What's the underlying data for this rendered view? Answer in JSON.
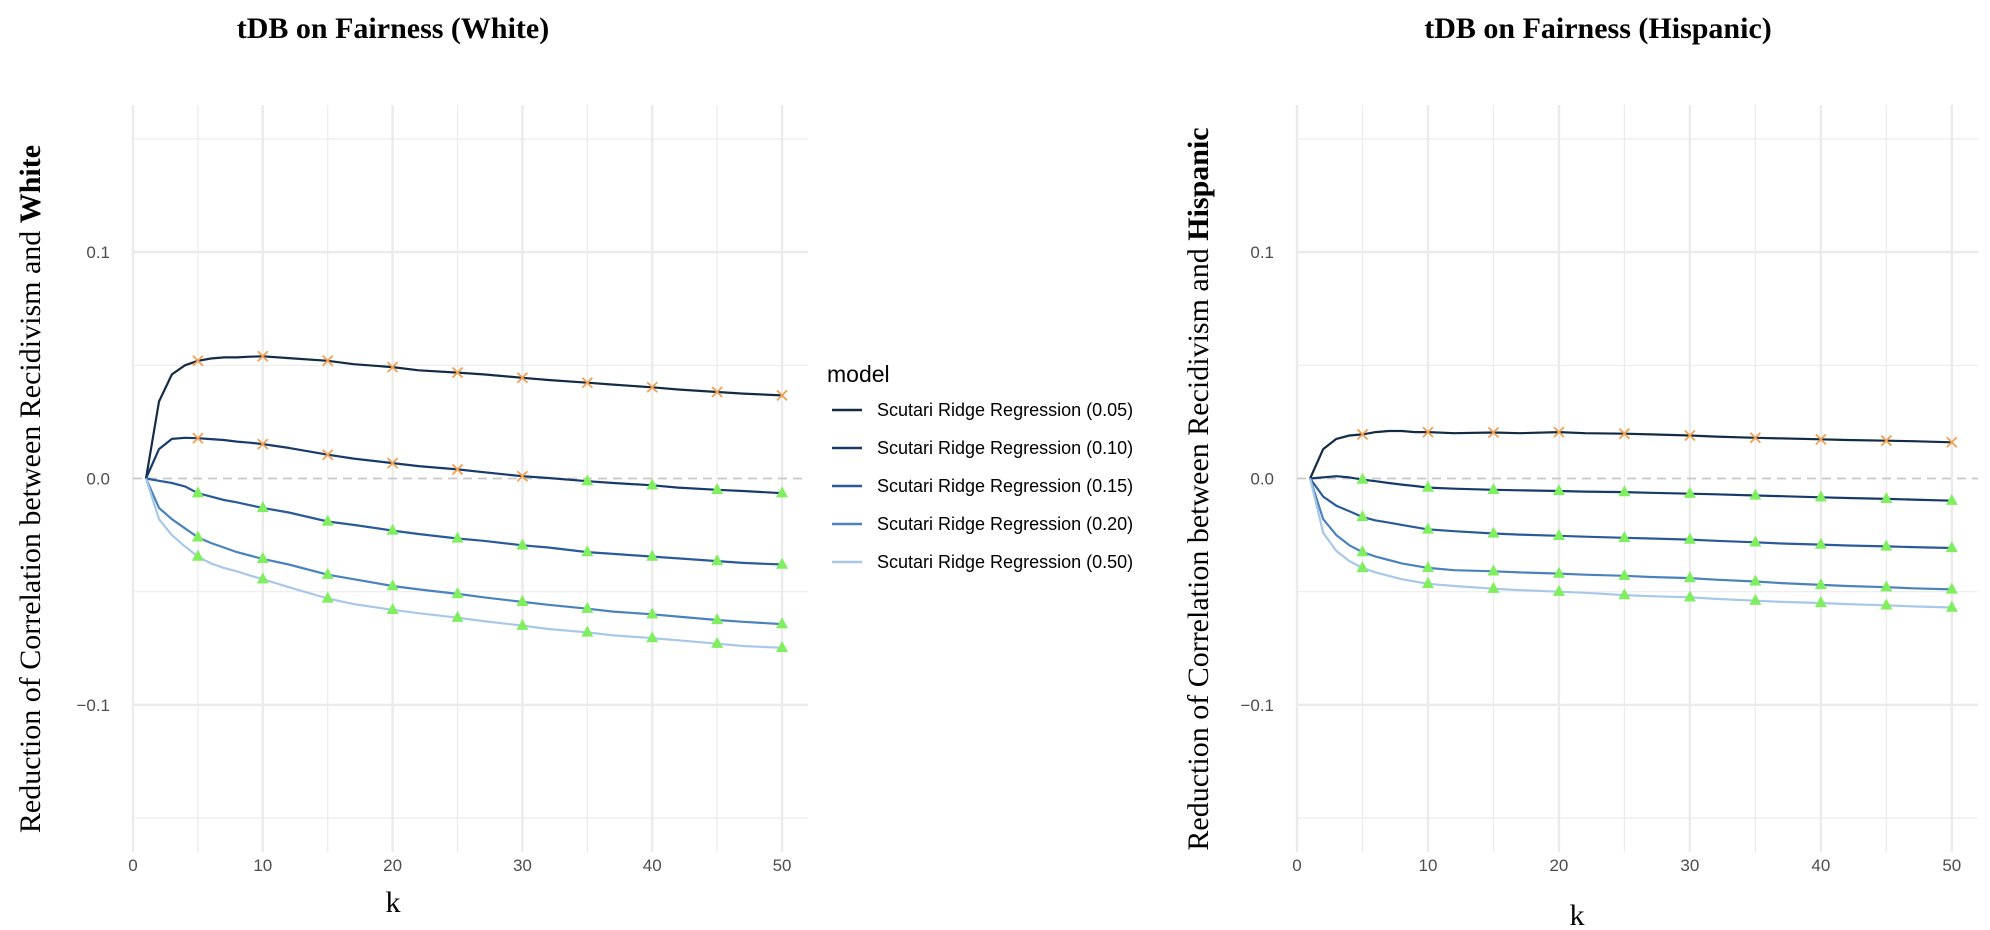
{
  "colors": {
    "series": [
      "#132b43",
      "#173a6a",
      "#2a5a9a",
      "#4a82bd",
      "#a8c8e8"
    ],
    "positive_marker": "#f0a050",
    "negative_marker": "#7fef5f",
    "grid": "#ebebeb",
    "zero_line": "#c8c8c8"
  },
  "legend": {
    "title": "model",
    "items": [
      "Scutari Ridge Regression (0.05)",
      "Scutari Ridge Regression (0.10)",
      "Scutari Ridge Regression (0.15)",
      "Scutari Ridge Regression (0.20)",
      "Scutari Ridge Regression (0.50)"
    ]
  },
  "chart_data": [
    {
      "type": "line",
      "title": "tDB on Fairness (White)",
      "xlabel": "k",
      "ylabel_prefix": "Reduction of Correlation between Recidivism and ",
      "ylabel_bold": "White",
      "xlim": [
        0,
        52
      ],
      "ylim": [
        -0.165,
        0.165
      ],
      "x_ticks": [
        0,
        10,
        20,
        30,
        40,
        50
      ],
      "y_ticks": [
        0.1,
        0.0,
        -0.1
      ],
      "y_tick_labels": [
        "0.1",
        "0.0",
        "−0.1"
      ],
      "marker_x": [
        5,
        10,
        15,
        20,
        25,
        30,
        35,
        40,
        45,
        50
      ],
      "x": [
        1,
        2,
        3,
        4,
        5,
        6,
        7,
        8,
        9,
        10,
        12,
        15,
        17,
        20,
        22,
        25,
        27,
        30,
        32,
        35,
        37,
        40,
        42,
        45,
        47,
        50
      ],
      "series": [
        {
          "name": "Scutari Ridge Regression (0.05)",
          "values": [
            0,
            0.034,
            0.046,
            0.05,
            0.052,
            0.053,
            0.0535,
            0.0535,
            0.0538,
            0.054,
            0.0532,
            0.052,
            0.0505,
            0.0492,
            0.0478,
            0.0468,
            0.046,
            0.0445,
            0.0435,
            0.0423,
            0.0415,
            0.0403,
            0.0393,
            0.0382,
            0.0375,
            0.0367
          ]
        },
        {
          "name": "Scutari Ridge Regression (0.10)",
          "values": [
            0,
            0.013,
            0.0175,
            0.018,
            0.0178,
            0.0174,
            0.017,
            0.0163,
            0.0158,
            0.0152,
            0.0135,
            0.0105,
            0.0088,
            0.0068,
            0.0055,
            0.004,
            0.0028,
            0.001,
            0.0002,
            -0.0012,
            -0.002,
            -0.003,
            -0.004,
            -0.005,
            -0.0055,
            -0.0065
          ]
        },
        {
          "name": "Scutari Ridge Regression (0.15)",
          "values": [
            0,
            -0.001,
            -0.002,
            -0.0035,
            -0.0065,
            -0.008,
            -0.0095,
            -0.0105,
            -0.0118,
            -0.013,
            -0.015,
            -0.019,
            -0.0205,
            -0.023,
            -0.0245,
            -0.0265,
            -0.0275,
            -0.0295,
            -0.0305,
            -0.0325,
            -0.0333,
            -0.0345,
            -0.0353,
            -0.0365,
            -0.0373,
            -0.038
          ]
        },
        {
          "name": "Scutari Ridge Regression (0.20)",
          "values": [
            0,
            -0.013,
            -0.018,
            -0.022,
            -0.026,
            -0.0285,
            -0.0305,
            -0.0325,
            -0.034,
            -0.0355,
            -0.038,
            -0.0425,
            -0.0445,
            -0.0475,
            -0.049,
            -0.051,
            -0.0525,
            -0.0545,
            -0.0558,
            -0.0575,
            -0.0588,
            -0.06,
            -0.061,
            -0.0625,
            -0.0633,
            -0.0643
          ]
        },
        {
          "name": "Scutari Ridge Regression (0.50)",
          "values": [
            0,
            -0.018,
            -0.025,
            -0.03,
            -0.0345,
            -0.0375,
            -0.0395,
            -0.041,
            -0.0428,
            -0.0445,
            -0.048,
            -0.053,
            -0.0555,
            -0.058,
            -0.0595,
            -0.0615,
            -0.063,
            -0.065,
            -0.0665,
            -0.068,
            -0.0693,
            -0.0705,
            -0.0715,
            -0.073,
            -0.074,
            -0.0748
          ]
        }
      ]
    },
    {
      "type": "line",
      "title": "tDB on Fairness (Hispanic)",
      "xlabel": "k",
      "ylabel_prefix": "Reduction of Correlation between Recidivism and ",
      "ylabel_bold": "Hispanic",
      "xlim": [
        0,
        52
      ],
      "ylim": [
        -0.165,
        0.165
      ],
      "x_ticks": [
        0,
        10,
        20,
        30,
        40,
        50
      ],
      "y_ticks": [
        0.1,
        0.0,
        -0.1
      ],
      "y_tick_labels": [
        "0.1",
        "0.0",
        "−0.1"
      ],
      "marker_x": [
        5,
        10,
        15,
        20,
        25,
        30,
        35,
        40,
        45,
        50
      ],
      "x": [
        1,
        2,
        3,
        4,
        5,
        6,
        7,
        8,
        9,
        10,
        12,
        15,
        17,
        20,
        22,
        25,
        27,
        30,
        32,
        35,
        37,
        40,
        42,
        45,
        47,
        50
      ],
      "series": [
        {
          "name": "Scutari Ridge Regression (0.05)",
          "values": [
            0,
            0.013,
            0.0175,
            0.019,
            0.0195,
            0.0205,
            0.021,
            0.021,
            0.0205,
            0.0205,
            0.02,
            0.0203,
            0.02,
            0.0205,
            0.02,
            0.0198,
            0.0195,
            0.019,
            0.0185,
            0.018,
            0.0177,
            0.0173,
            0.017,
            0.0167,
            0.0165,
            0.016
          ]
        },
        {
          "name": "Scutari Ridge Regression (0.10)",
          "values": [
            0,
            0.0005,
            0.001,
            0.0005,
            -0.0005,
            -0.0012,
            -0.002,
            -0.0027,
            -0.0033,
            -0.004,
            -0.0045,
            -0.005,
            -0.0052,
            -0.0055,
            -0.0058,
            -0.006,
            -0.0063,
            -0.0067,
            -0.007,
            -0.0075,
            -0.0078,
            -0.0083,
            -0.0086,
            -0.009,
            -0.0093,
            -0.0098
          ]
        },
        {
          "name": "Scutari Ridge Regression (0.15)",
          "values": [
            0,
            -0.008,
            -0.012,
            -0.0145,
            -0.017,
            -0.0185,
            -0.0195,
            -0.0205,
            -0.0215,
            -0.0225,
            -0.0233,
            -0.0243,
            -0.0248,
            -0.0253,
            -0.0257,
            -0.0262,
            -0.0265,
            -0.027,
            -0.0275,
            -0.0282,
            -0.0287,
            -0.0292,
            -0.0296,
            -0.03,
            -0.0303,
            -0.0307
          ]
        },
        {
          "name": "Scutari Ridge Regression (0.20)",
          "values": [
            0,
            -0.018,
            -0.025,
            -0.0295,
            -0.0325,
            -0.0345,
            -0.036,
            -0.0375,
            -0.0385,
            -0.0395,
            -0.0405,
            -0.041,
            -0.0415,
            -0.042,
            -0.0425,
            -0.043,
            -0.0435,
            -0.044,
            -0.0447,
            -0.0455,
            -0.0462,
            -0.047,
            -0.0475,
            -0.048,
            -0.0485,
            -0.049
          ]
        },
        {
          "name": "Scutari Ridge Regression (0.50)",
          "values": [
            0,
            -0.024,
            -0.032,
            -0.0365,
            -0.0395,
            -0.0415,
            -0.043,
            -0.0445,
            -0.0455,
            -0.0465,
            -0.0475,
            -0.0487,
            -0.0493,
            -0.05,
            -0.0505,
            -0.0515,
            -0.052,
            -0.0525,
            -0.0532,
            -0.054,
            -0.0545,
            -0.055,
            -0.0555,
            -0.056,
            -0.0565,
            -0.057
          ]
        }
      ]
    }
  ]
}
